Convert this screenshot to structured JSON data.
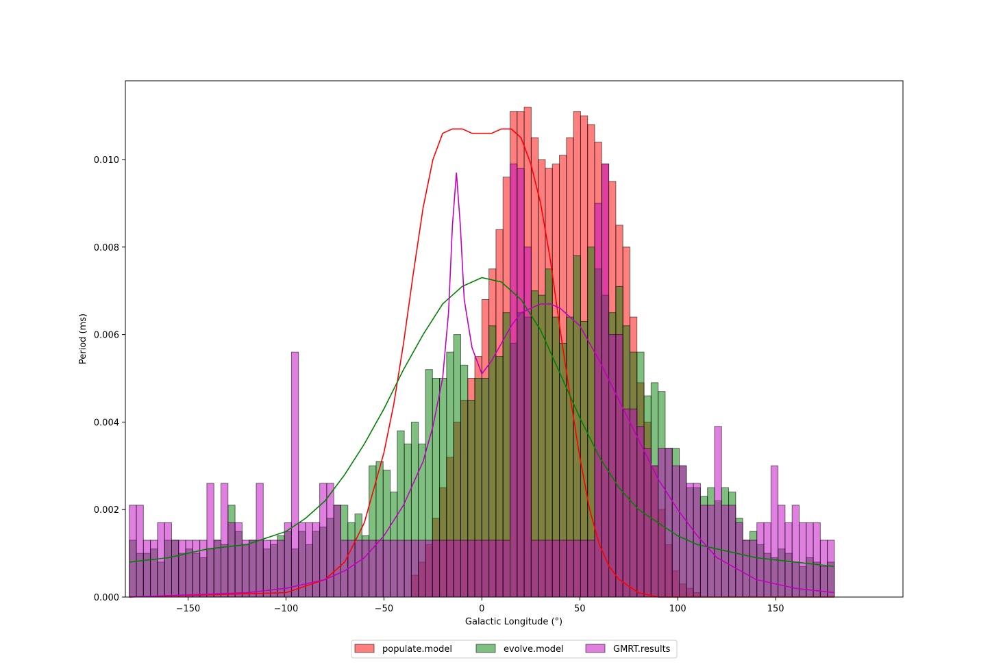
{
  "chart_data": {
    "type": "bar",
    "title": "",
    "xlabel": "Galactic Longitude (°)",
    "ylabel": "Period (ms)",
    "xlim": [
      -182,
      215
    ],
    "ylim": [
      0,
      0.0118
    ],
    "xticks": [
      -150,
      -100,
      -50,
      0,
      50,
      100,
      150
    ],
    "xtick_labels": [
      "−150",
      "−100",
      "−50",
      "0",
      "50",
      "100",
      "150"
    ],
    "yticks": [
      0,
      0.002,
      0.004,
      0.006,
      0.008,
      0.01
    ],
    "ytick_labels": [
      "0.000",
      "0.002",
      "0.004",
      "0.006",
      "0.008",
      "0.010"
    ],
    "bin_start": -180,
    "bin_width": 3.6,
    "legend": {
      "placement": "lower center, below axes",
      "columns": 3
    },
    "grid": false,
    "series": [
      {
        "name": "populate.model",
        "kind": "histogram",
        "color": "#ff0000",
        "alpha": 0.5,
        "values": [
          0,
          0,
          0,
          0,
          0,
          0,
          0,
          0,
          0,
          0,
          0,
          0,
          0,
          0,
          0,
          0,
          0,
          0,
          0,
          0,
          0,
          0,
          0,
          0,
          0,
          0,
          0,
          0,
          0,
          0,
          0,
          0,
          0,
          0,
          0,
          0,
          0,
          0,
          0,
          0,
          0.0005,
          0.0008,
          0.0012,
          0.0018,
          0.0025,
          0.0032,
          0.004,
          0.0045,
          0.005,
          0.0055,
          0.0068,
          0.0075,
          0.0084,
          0.0096,
          0.0111,
          0.0111,
          0.0112,
          0.0105,
          0.01,
          0.0098,
          0.0099,
          0.0101,
          0.0105,
          0.0111,
          0.011,
          0.0108,
          0.0104,
          0.0099,
          0.0095,
          0.0085,
          0.008,
          0.0064,
          0.0049,
          0.004,
          0.003,
          0.002,
          0.0012,
          0.0006,
          0.0003,
          0.0002,
          0.0001,
          0,
          0,
          0,
          0,
          0,
          0,
          0,
          0,
          0,
          0,
          0,
          0,
          0,
          0,
          0,
          0,
          0,
          0,
          0
        ]
      },
      {
        "name": "evolve.model",
        "kind": "histogram",
        "color": "#008000",
        "alpha": 0.5,
        "values": [
          0.0013,
          0.001,
          0.001,
          0.0011,
          0.0008,
          0.0013,
          0.0013,
          0.001,
          0.0011,
          0.001,
          0.0009,
          0.0011,
          0.0013,
          0.0012,
          0.0021,
          0.0015,
          0.0012,
          0.0013,
          0.0013,
          0.0011,
          0.0012,
          0.0014,
          0.0015,
          0.0011,
          0.0015,
          0.0012,
          0.0015,
          0.0016,
          0.0018,
          0.0021,
          0.0021,
          0.0017,
          0.0019,
          0.0014,
          0.003,
          0.0031,
          0.0029,
          0.0024,
          0.0038,
          0.0035,
          0.004,
          0.0035,
          0.0052,
          0.005,
          0.005,
          0.0056,
          0.006,
          0.0053,
          0.0045,
          0.005,
          0.005,
          0.0062,
          0.0055,
          0.0065,
          0.0058,
          0.0065,
          0.0064,
          0.007,
          0.0069,
          0.0075,
          0.0064,
          0.0058,
          0.0064,
          0.0078,
          0.0063,
          0.008,
          0.0075,
          0.0069,
          0.0065,
          0.0071,
          0.0062,
          0.0056,
          0.0056,
          0.0046,
          0.0049,
          0.0047,
          0.0034,
          0.0034,
          0.003,
          0.0025,
          0.0025,
          0.0023,
          0.0025,
          0.0022,
          0.0025,
          0.0024,
          0.0018,
          0.0013,
          0.0015,
          0.0012,
          0.001,
          0.0009,
          0.0011,
          0.001,
          0.0008,
          0.0007,
          0.0009,
          0.0008,
          0.0007,
          0.0008
        ]
      },
      {
        "name": "GMRT.results",
        "kind": "histogram",
        "color": "#bf00bf",
        "alpha": 0.5,
        "values": [
          0.0021,
          0.0021,
          0.0013,
          0.0013,
          0.0017,
          0.0017,
          0.0013,
          0.0013,
          0.0013,
          0.0013,
          0.0013,
          0.0026,
          0.0013,
          0.0026,
          0.0017,
          0.0017,
          0.0013,
          0.0013,
          0.0026,
          0.0013,
          0.0013,
          0.0013,
          0.0017,
          0.0056,
          0.0017,
          0.0017,
          0.0017,
          0.0026,
          0.0026,
          0.0021,
          0.0013,
          0.0013,
          0.0013,
          0.0013,
          0.0013,
          0.0013,
          0.0013,
          0.0013,
          0.0013,
          0.0013,
          0.0013,
          0.0013,
          0.0013,
          0.0013,
          0.0013,
          0.0013,
          0.0013,
          0.0013,
          0.0013,
          0.0013,
          0.0013,
          0.0013,
          0.0013,
          0.0013,
          0.0099,
          0.0098,
          0.008,
          0.0013,
          0.0013,
          0.0013,
          0.0013,
          0.0013,
          0.0013,
          0.0013,
          0.0013,
          0.0013,
          0.009,
          0.0099,
          0.006,
          0.006,
          0.0043,
          0.0043,
          0.0039,
          0.0034,
          0.003,
          0.0034,
          0.0034,
          0.003,
          0.003,
          0.0026,
          0.0026,
          0.0021,
          0.0021,
          0.0039,
          0.0021,
          0.0021,
          0.0017,
          0.0013,
          0.0013,
          0.0017,
          0.0017,
          0.003,
          0.0021,
          0.0017,
          0.0021,
          0.0017,
          0.0017,
          0.0017,
          0.0013,
          0.0013
        ]
      },
      {
        "name": "populate.model",
        "kind": "kde",
        "color": "#ff0000",
        "x": [
          -180,
          -100,
          -80,
          -70,
          -60,
          -50,
          -45,
          -40,
          -35,
          -30,
          -25,
          -20,
          -15,
          -10,
          -5,
          0,
          5,
          10,
          15,
          20,
          25,
          30,
          35,
          40,
          45,
          50,
          55,
          60,
          65,
          70,
          80,
          90,
          100,
          180
        ],
        "y": [
          0,
          0.0001,
          0.0004,
          0.0008,
          0.0017,
          0.0033,
          0.0044,
          0.0058,
          0.0074,
          0.0089,
          0.01,
          0.0106,
          0.0107,
          0.0107,
          0.0106,
          0.0106,
          0.0106,
          0.0107,
          0.0107,
          0.0105,
          0.0099,
          0.009,
          0.0077,
          0.0061,
          0.0046,
          0.0032,
          0.002,
          0.0012,
          0.0007,
          0.0004,
          0.0001,
          0,
          0,
          0
        ]
      },
      {
        "name": "evolve.model",
        "kind": "kde",
        "color": "#008000",
        "x": [
          -180,
          -160,
          -140,
          -120,
          -100,
          -90,
          -80,
          -70,
          -60,
          -50,
          -40,
          -30,
          -20,
          -10,
          0,
          10,
          20,
          30,
          40,
          50,
          60,
          70,
          80,
          90,
          100,
          110,
          120,
          140,
          160,
          180
        ],
        "y": [
          0.0008,
          0.0009,
          0.0011,
          0.0012,
          0.0015,
          0.0018,
          0.0022,
          0.0028,
          0.0035,
          0.0043,
          0.0052,
          0.006,
          0.0067,
          0.0071,
          0.0073,
          0.0072,
          0.0068,
          0.0061,
          0.0051,
          0.0041,
          0.0032,
          0.0025,
          0.002,
          0.0017,
          0.0014,
          0.0012,
          0.0011,
          0.0009,
          0.0008,
          0.0007
        ]
      },
      {
        "name": "GMRT.results",
        "kind": "kde",
        "color": "#bf00bf",
        "x": [
          -180,
          -120,
          -100,
          -80,
          -70,
          -60,
          -50,
          -40,
          -30,
          -25,
          -20,
          -17,
          -15,
          -13,
          -11,
          -9,
          -5,
          0,
          5,
          10,
          15,
          20,
          25,
          30,
          35,
          40,
          45,
          50,
          60,
          70,
          80,
          90,
          100,
          110,
          120,
          140,
          160,
          180
        ],
        "y": [
          0,
          0.0001,
          0.0002,
          0.0004,
          0.0006,
          0.0009,
          0.0014,
          0.0021,
          0.0031,
          0.0039,
          0.005,
          0.0065,
          0.0085,
          0.0097,
          0.0085,
          0.0068,
          0.0057,
          0.0051,
          0.0054,
          0.0058,
          0.0062,
          0.0065,
          0.0066,
          0.0067,
          0.0067,
          0.0066,
          0.0064,
          0.0062,
          0.0054,
          0.0045,
          0.0036,
          0.0027,
          0.002,
          0.0014,
          0.0009,
          0.0004,
          0.0002,
          0.0001
        ]
      }
    ]
  }
}
